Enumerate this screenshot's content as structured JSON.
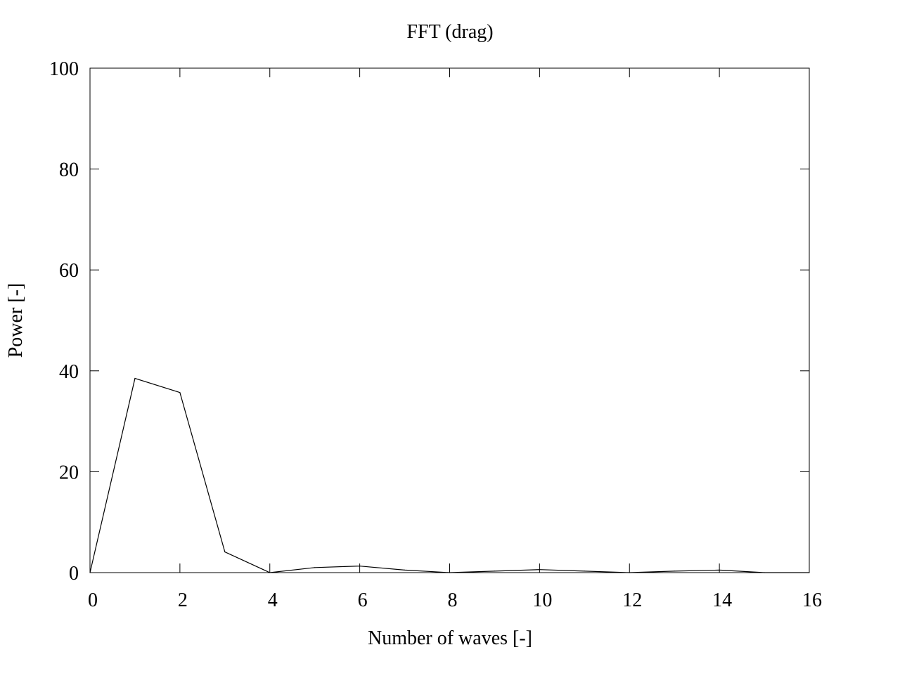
{
  "chart_data": {
    "type": "line",
    "title": "FFT (drag)",
    "xlabel": "Number of waves [-]",
    "ylabel": "Power [-]",
    "xlim": [
      0,
      16
    ],
    "ylim": [
      0,
      100
    ],
    "x_ticks": [
      0,
      2,
      4,
      6,
      8,
      10,
      12,
      14,
      16
    ],
    "y_ticks": [
      0,
      20,
      40,
      60,
      80,
      100
    ],
    "x_tick_labels": [
      "0",
      "2",
      "4",
      "6",
      "8",
      "10",
      "12",
      "14",
      "16"
    ],
    "y_tick_labels": [
      "0",
      "20",
      "40",
      "60",
      "80",
      "100"
    ],
    "grid": false,
    "legend": "none",
    "series": [
      {
        "color": "#000000",
        "x": [
          0,
          1,
          2,
          3,
          4,
          5,
          6,
          7,
          8,
          9,
          10,
          11,
          12,
          13,
          14,
          15,
          16
        ],
        "y": [
          0,
          38.5,
          35.7,
          4.1,
          0.0,
          1.0,
          1.3,
          0.5,
          0.0,
          0.3,
          0.6,
          0.3,
          0.0,
          0.3,
          0.5,
          0.0,
          0.0
        ]
      }
    ]
  }
}
